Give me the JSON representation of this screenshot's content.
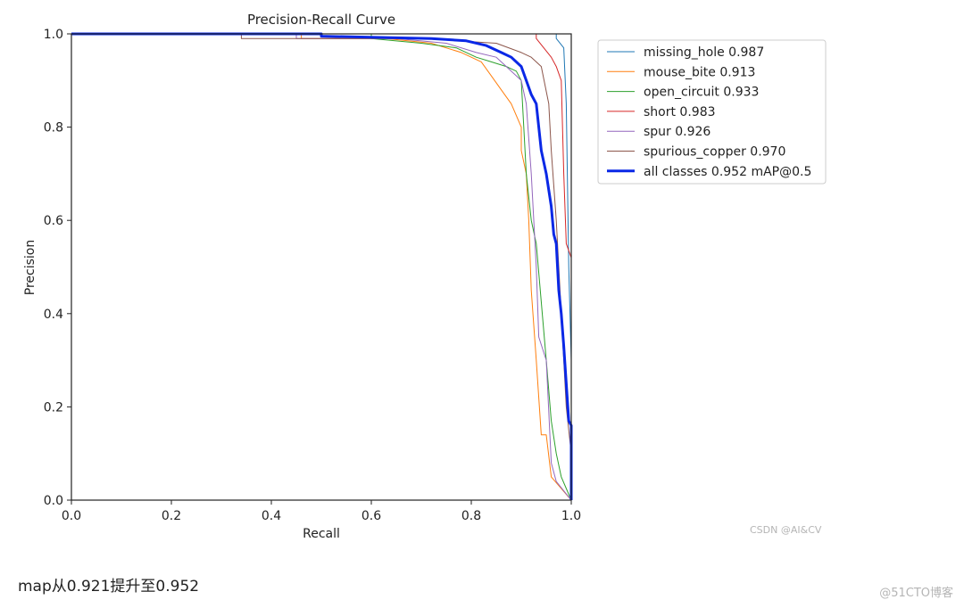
{
  "chart_data": {
    "type": "line",
    "title": "Precision-Recall Curve",
    "xlabel": "Recall",
    "ylabel": "Precision",
    "xlim": [
      0,
      1
    ],
    "ylim": [
      0,
      1
    ],
    "xticks": [
      "0.0",
      "0.2",
      "0.4",
      "0.6",
      "0.8",
      "1.0"
    ],
    "yticks": [
      "0.0",
      "0.2",
      "0.4",
      "0.6",
      "0.8",
      "1.0"
    ],
    "grid": false,
    "legend_position": "outside-right",
    "series": [
      {
        "name": "missing_hole 0.987",
        "color": "#1f77b4",
        "width": 1,
        "points": [
          [
            0,
            1
          ],
          [
            0.97,
            1
          ],
          [
            0.97,
            0.99
          ],
          [
            0.985,
            0.97
          ],
          [
            0.99,
            0.85
          ],
          [
            0.995,
            0.5
          ],
          [
            1.0,
            0.3
          ],
          [
            1.0,
            0.0
          ]
        ]
      },
      {
        "name": "mouse_bite 0.913",
        "color": "#ff7f0e",
        "width": 1,
        "points": [
          [
            0,
            1
          ],
          [
            0.46,
            1
          ],
          [
            0.46,
            0.99
          ],
          [
            0.63,
            0.99
          ],
          [
            0.72,
            0.98
          ],
          [
            0.78,
            0.96
          ],
          [
            0.82,
            0.94
          ],
          [
            0.84,
            0.91
          ],
          [
            0.86,
            0.88
          ],
          [
            0.88,
            0.85
          ],
          [
            0.9,
            0.8
          ],
          [
            0.9,
            0.75
          ],
          [
            0.91,
            0.7
          ],
          [
            0.915,
            0.6
          ],
          [
            0.92,
            0.45
          ],
          [
            0.93,
            0.3
          ],
          [
            0.94,
            0.14
          ],
          [
            0.95,
            0.14
          ],
          [
            0.96,
            0.05
          ],
          [
            1.0,
            0.0
          ]
        ]
      },
      {
        "name": "open_circuit 0.933",
        "color": "#2ca02c",
        "width": 1,
        "points": [
          [
            0,
            1
          ],
          [
            0.6,
            1
          ],
          [
            0.6,
            0.99
          ],
          [
            0.7,
            0.98
          ],
          [
            0.77,
            0.97
          ],
          [
            0.81,
            0.95
          ],
          [
            0.84,
            0.94
          ],
          [
            0.87,
            0.93
          ],
          [
            0.89,
            0.92
          ],
          [
            0.9,
            0.9
          ],
          [
            0.905,
            0.8
          ],
          [
            0.91,
            0.7
          ],
          [
            0.92,
            0.6
          ],
          [
            0.93,
            0.55
          ],
          [
            0.95,
            0.3
          ],
          [
            0.96,
            0.17
          ],
          [
            0.97,
            0.1
          ],
          [
            0.98,
            0.05
          ],
          [
            1.0,
            0.0
          ]
        ]
      },
      {
        "name": "short 0.983",
        "color": "#d62728",
        "width": 1,
        "points": [
          [
            0,
            1
          ],
          [
            0.93,
            1
          ],
          [
            0.93,
            0.99
          ],
          [
            0.96,
            0.95
          ],
          [
            0.97,
            0.93
          ],
          [
            0.98,
            0.9
          ],
          [
            0.985,
            0.7
          ],
          [
            0.99,
            0.55
          ],
          [
            1.0,
            0.52
          ],
          [
            1.0,
            0.0
          ]
        ]
      },
      {
        "name": "spur 0.926",
        "color": "#9467bd",
        "width": 1,
        "points": [
          [
            0,
            1
          ],
          [
            0.45,
            1
          ],
          [
            0.45,
            0.99
          ],
          [
            0.65,
            0.99
          ],
          [
            0.75,
            0.98
          ],
          [
            0.81,
            0.96
          ],
          [
            0.85,
            0.95
          ],
          [
            0.87,
            0.93
          ],
          [
            0.9,
            0.9
          ],
          [
            0.91,
            0.85
          ],
          [
            0.92,
            0.7
          ],
          [
            0.93,
            0.5
          ],
          [
            0.935,
            0.35
          ],
          [
            0.95,
            0.3
          ],
          [
            0.96,
            0.08
          ],
          [
            0.97,
            0.04
          ],
          [
            1.0,
            0.0
          ]
        ]
      },
      {
        "name": "spurious_copper 0.970",
        "color": "#8c564b",
        "width": 1,
        "points": [
          [
            0,
            1
          ],
          [
            0.34,
            1
          ],
          [
            0.34,
            0.99
          ],
          [
            0.7,
            0.99
          ],
          [
            0.85,
            0.98
          ],
          [
            0.9,
            0.96
          ],
          [
            0.92,
            0.95
          ],
          [
            0.94,
            0.93
          ],
          [
            0.955,
            0.85
          ],
          [
            0.96,
            0.75
          ],
          [
            0.97,
            0.6
          ],
          [
            0.975,
            0.5
          ],
          [
            0.985,
            0.3
          ],
          [
            0.99,
            0.2
          ],
          [
            1.0,
            0.1
          ],
          [
            1.0,
            0.0
          ]
        ]
      },
      {
        "name": "all classes 0.952 mAP@0.5",
        "color": "#0a28e6",
        "width": 3,
        "points": [
          [
            0,
            1
          ],
          [
            0.5,
            1
          ],
          [
            0.5,
            0.995
          ],
          [
            0.72,
            0.99
          ],
          [
            0.79,
            0.985
          ],
          [
            0.83,
            0.975
          ],
          [
            0.86,
            0.96
          ],
          [
            0.88,
            0.95
          ],
          [
            0.9,
            0.93
          ],
          [
            0.91,
            0.9
          ],
          [
            0.92,
            0.87
          ],
          [
            0.93,
            0.85
          ],
          [
            0.935,
            0.8
          ],
          [
            0.94,
            0.75
          ],
          [
            0.95,
            0.7
          ],
          [
            0.96,
            0.63
          ],
          [
            0.965,
            0.57
          ],
          [
            0.97,
            0.55
          ],
          [
            0.975,
            0.45
          ],
          [
            0.98,
            0.4
          ],
          [
            0.985,
            0.33
          ],
          [
            0.99,
            0.25
          ],
          [
            0.995,
            0.17
          ],
          [
            1.0,
            0.16
          ],
          [
            1.0,
            0.0
          ]
        ]
      }
    ]
  },
  "caption": "map从0.921提升至0.952",
  "watermark_csdn": "CSDN @AI&CV",
  "watermark_51cto": "@51CTO博客"
}
